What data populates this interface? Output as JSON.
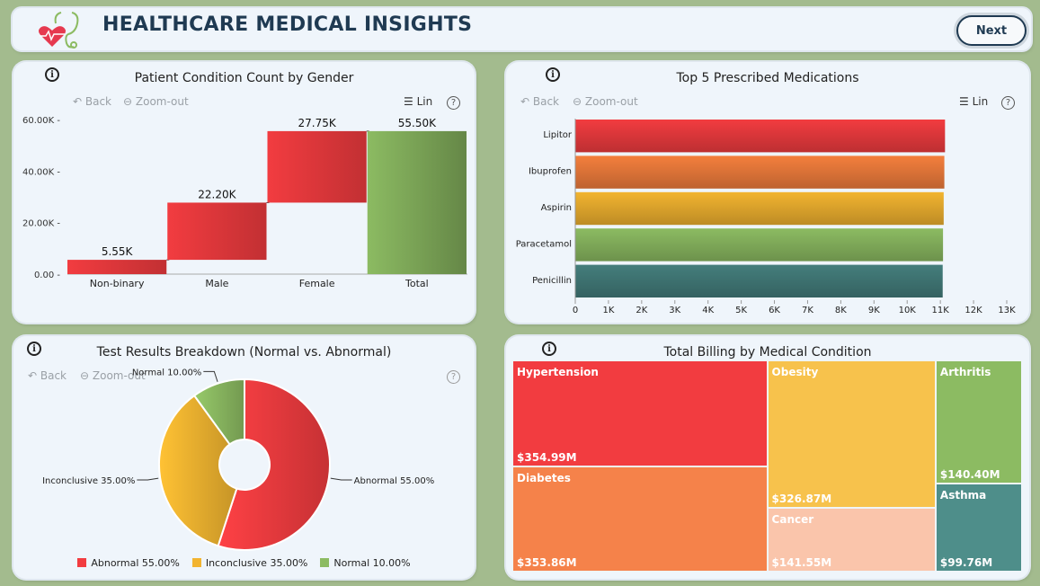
{
  "header": {
    "title": "HEALTHCARE MEDICAL INSIGHTS",
    "next_label": "Next",
    "logo_icon": "stethoscope-heart-icon"
  },
  "toolbar": {
    "back": "Back",
    "zoom_out": "Zoom-out",
    "lin": "Lin",
    "help": "?"
  },
  "info_glyph": "i",
  "panels": {
    "waterfall": {
      "title": "Patient Condition Count by Gender"
    },
    "medications": {
      "title": "Top 5 Prescribed Medications"
    },
    "tests": {
      "title": "Test Results Breakdown (Normal vs. Abnormal)"
    },
    "billing": {
      "title": "Total Billing by Medical Condition"
    }
  },
  "chart_data": [
    {
      "type": "bar",
      "subtype": "waterfall",
      "title": "Patient Condition Count by Gender",
      "categories": [
        "Non-binary",
        "Male",
        "Female",
        "Total"
      ],
      "values": [
        5550,
        22200,
        27750,
        55500
      ],
      "data_labels": [
        "5.55K",
        "22.20K",
        "27.75K",
        "55.50K"
      ],
      "ylim": [
        0,
        60000
      ],
      "y_ticks": [
        0,
        20000,
        40000,
        60000
      ],
      "y_tick_labels": [
        "0.00",
        "20.00K",
        "40.00K",
        "60.00K"
      ],
      "colors": {
        "increase": "#f23c40",
        "total": "#8cbb62"
      }
    },
    {
      "type": "bar",
      "orientation": "horizontal",
      "title": "Top 5 Prescribed Medications",
      "categories": [
        "Lipitor",
        "Ibuprofen",
        "Aspirin",
        "Paracetamol",
        "Penicillin"
      ],
      "values": [
        11140,
        11120,
        11100,
        11080,
        11070
      ],
      "xlim": [
        0,
        13000
      ],
      "x_ticks": [
        0,
        1000,
        2000,
        3000,
        4000,
        5000,
        6000,
        7000,
        8000,
        9000,
        10000,
        11000,
        12000,
        13000
      ],
      "x_tick_labels": [
        "0",
        "1K",
        "2K",
        "3K",
        "4K",
        "5K",
        "6K",
        "7K",
        "8K",
        "9K",
        "10K",
        "11K",
        "12K",
        "13K"
      ],
      "colors": [
        "#f23c40",
        "#f47f3d",
        "#f2b430",
        "#8cbb62",
        "#447e7c"
      ]
    },
    {
      "type": "pie",
      "subtype": "donut",
      "title": "Test Results Breakdown (Normal vs. Abnormal)",
      "slices": [
        {
          "label": "Abnormal",
          "value": 55.0,
          "display": "Abnormal 55.00%",
          "color": "#f23c40"
        },
        {
          "label": "Inconclusive",
          "value": 35.0,
          "display": "Inconclusive 35.00%",
          "color": "#f2b430"
        },
        {
          "label": "Normal",
          "value": 10.0,
          "display": "Normal 10.00%",
          "color": "#8cbb62"
        }
      ],
      "legend_position": "bottom"
    },
    {
      "type": "treemap",
      "title": "Total Billing by Medical Condition",
      "items": [
        {
          "label": "Hypertension",
          "value": 354.99,
          "display": "$354.99M",
          "color": "#f23c40"
        },
        {
          "label": "Diabetes",
          "value": 353.86,
          "display": "$353.86M",
          "color": "#f5824a"
        },
        {
          "label": "Obesity",
          "value": 326.87,
          "display": "$326.87M",
          "color": "#f7c24c"
        },
        {
          "label": "Cancer",
          "value": 141.55,
          "display": "$141.55M",
          "color": "#fac5ab"
        },
        {
          "label": "Arthritis",
          "value": 140.4,
          "display": "$140.40M",
          "color": "#8cbb62"
        },
        {
          "label": "Asthma",
          "value": 99.76,
          "display": "$99.76M",
          "color": "#4e8e8a"
        }
      ]
    }
  ]
}
